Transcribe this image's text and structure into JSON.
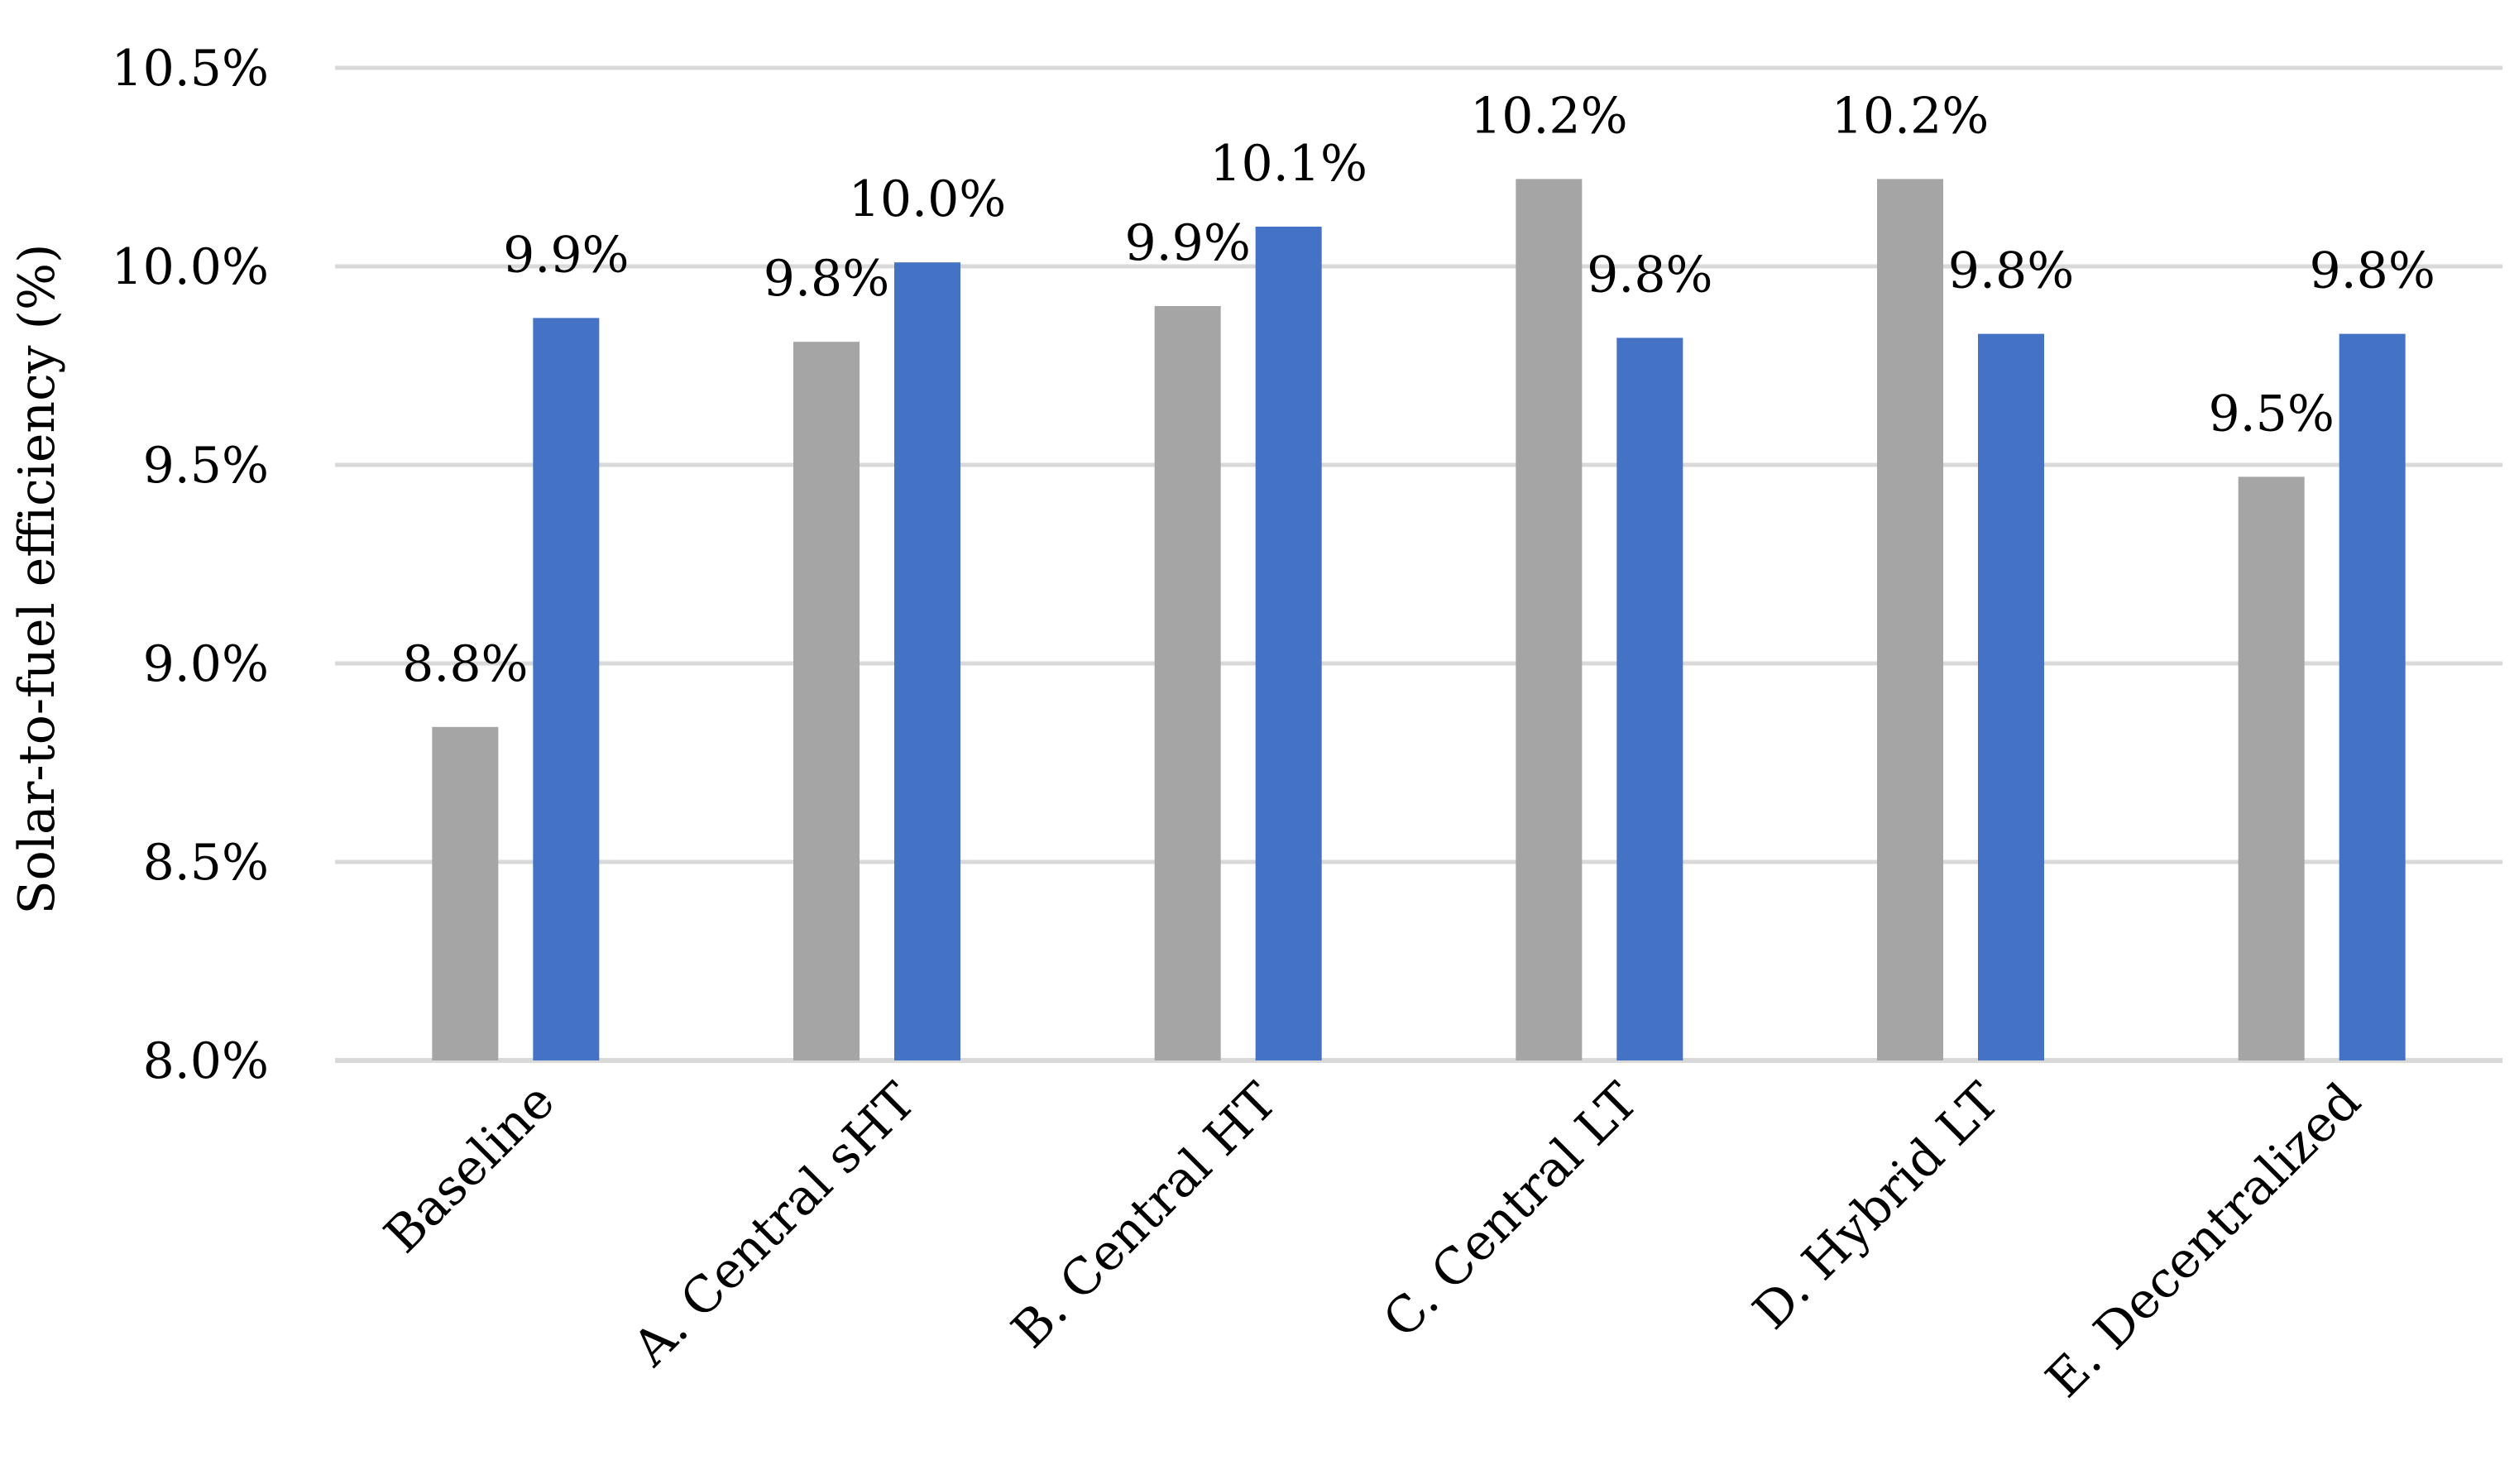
{
  "chart_data": {
    "type": "bar",
    "title": "",
    "xlabel": "",
    "ylabel": "Solar-to-fuel efficiency (%)",
    "ylim": [
      8.0,
      10.5
    ],
    "yticks": [
      8.0,
      8.5,
      9.0,
      9.5,
      10.0,
      10.5
    ],
    "ytick_labels": [
      "8.0%",
      "8.5%",
      "9.0%",
      "9.5%",
      "10.0%",
      "10.5%"
    ],
    "grid": true,
    "legend": "none",
    "categories": [
      "Baseline",
      "A. Central sHT",
      "B. Central HT",
      "C. Central LT",
      "D. Hybrid LT",
      "E. Decentralized"
    ],
    "series": [
      {
        "name": "Series 1",
        "color": "#a5a5a5",
        "values": [
          8.84,
          9.81,
          9.9,
          10.22,
          10.22,
          9.47
        ],
        "labels": [
          "8.8%",
          "9.8%",
          "9.9%",
          "10.2%",
          "10.2%",
          "9.5%"
        ]
      },
      {
        "name": "Series 2",
        "color": "#4472c4",
        "values": [
          9.87,
          10.01,
          10.1,
          9.82,
          9.83,
          9.83
        ],
        "labels": [
          "9.9%",
          "10.0%",
          "10.1%",
          "9.8%",
          "9.8%",
          "9.8%"
        ]
      }
    ],
    "gridline_color": "#d9d9d9"
  }
}
